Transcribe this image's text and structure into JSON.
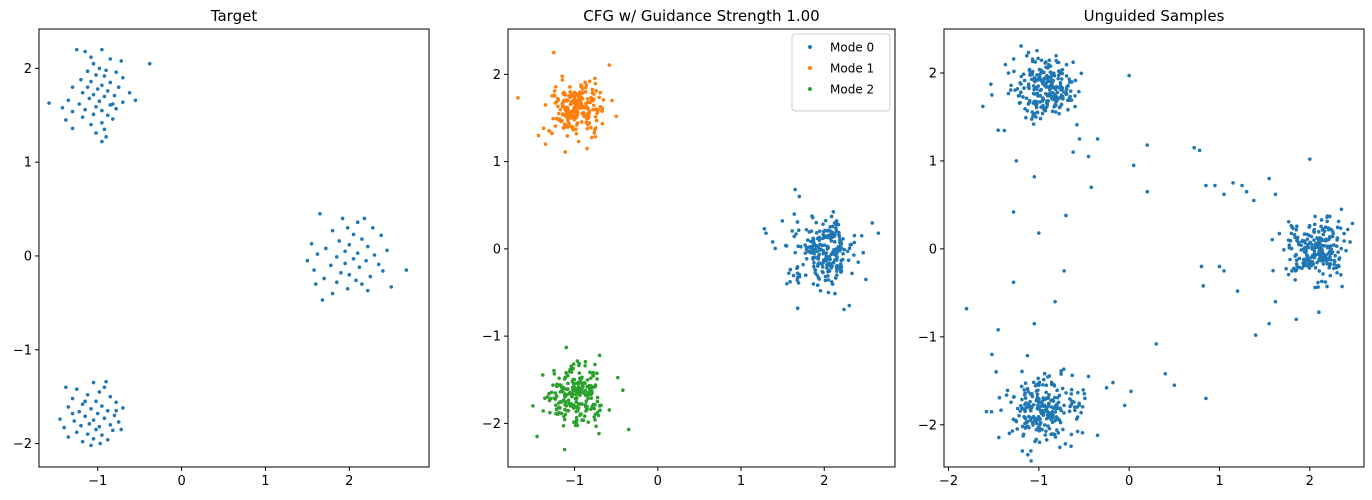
{
  "chart_data": [
    {
      "type": "scatter",
      "title": "Target",
      "xlim": [
        -1.7,
        2.95
      ],
      "ylim": [
        -2.25,
        2.42
      ],
      "xticks": [
        "−1",
        "0",
        "1",
        "2"
      ],
      "xtick_values": [
        -1,
        0,
        1,
        2
      ],
      "yticks": [
        "−2",
        "−1",
        "0",
        "1",
        "2"
      ],
      "ytick_values": [
        -2,
        -1,
        0,
        1,
        2
      ],
      "legend": false,
      "series": [
        {
          "color": "#1f77b4",
          "points": [
            [
              -1.25,
              2.2
            ],
            [
              -1.15,
              2.18
            ],
            [
              -0.95,
              2.2
            ],
            [
              -1.08,
              2.12
            ],
            [
              -0.85,
              2.1
            ],
            [
              -0.72,
              2.08
            ],
            [
              -0.38,
              2.05
            ],
            [
              -1.05,
              2.05
            ],
            [
              -0.98,
              2.0
            ],
            [
              -0.9,
              1.98
            ],
            [
              -1.12,
              1.97
            ],
            [
              -0.78,
              1.96
            ],
            [
              -1.02,
              1.93
            ],
            [
              -0.92,
              1.92
            ],
            [
              -0.7,
              1.9
            ],
            [
              -1.2,
              1.88
            ],
            [
              -1.08,
              1.86
            ],
            [
              -0.85,
              1.85
            ],
            [
              -0.95,
              1.82
            ],
            [
              -0.75,
              1.8
            ],
            [
              -1.3,
              1.8
            ],
            [
              -1.0,
              1.78
            ],
            [
              -0.88,
              1.76
            ],
            [
              -1.18,
              1.74
            ],
            [
              -0.62,
              1.74
            ],
            [
              -1.05,
              1.72
            ],
            [
              -0.8,
              1.71
            ],
            [
              -0.92,
              1.7
            ],
            [
              -1.1,
              1.68
            ],
            [
              -0.55,
              1.66
            ],
            [
              -1.35,
              1.66
            ],
            [
              -0.98,
              1.65
            ],
            [
              -0.7,
              1.64
            ],
            [
              -1.22,
              1.62
            ],
            [
              -1.58,
              1.63
            ],
            [
              -0.85,
              1.61
            ],
            [
              -1.02,
              1.59
            ],
            [
              -1.42,
              1.58
            ],
            [
              -0.78,
              1.57
            ],
            [
              -1.15,
              1.56
            ],
            [
              -0.95,
              1.55
            ],
            [
              -1.3,
              1.54
            ],
            [
              -1.05,
              1.51
            ],
            [
              -0.88,
              1.5
            ],
            [
              -1.18,
              1.48
            ],
            [
              -0.82,
              1.46
            ],
            [
              -1.38,
              1.45
            ],
            [
              -0.95,
              1.42
            ],
            [
              -1.08,
              1.4
            ],
            [
              -1.3,
              1.36
            ],
            [
              -0.92,
              1.35
            ],
            [
              -1.02,
              1.31
            ],
            [
              -0.9,
              1.27
            ],
            [
              -0.95,
              1.22
            ],
            [
              -0.82,
              1.62
            ],
            [
              -1.12,
              1.8
            ],
            [
              1.65,
              0.45
            ],
            [
              1.92,
              0.4
            ],
            [
              2.18,
              0.4
            ],
            [
              2.1,
              0.36
            ],
            [
              2.28,
              0.3
            ],
            [
              1.98,
              0.3
            ],
            [
              1.8,
              0.27
            ],
            [
              2.05,
              0.23
            ],
            [
              2.38,
              0.22
            ],
            [
              2.15,
              0.18
            ],
            [
              1.88,
              0.16
            ],
            [
              1.55,
              0.13
            ],
            [
              2.0,
              0.12
            ],
            [
              2.22,
              0.1
            ],
            [
              1.72,
              0.08
            ],
            [
              2.45,
              0.06
            ],
            [
              1.95,
              0.05
            ],
            [
              2.1,
              0.03
            ],
            [
              1.62,
              0.02
            ],
            [
              2.3,
              0.01
            ],
            [
              1.85,
              -0.01
            ],
            [
              2.05,
              -0.03
            ],
            [
              2.2,
              -0.05
            ],
            [
              1.5,
              -0.05
            ],
            [
              1.95,
              -0.08
            ],
            [
              2.35,
              -0.09
            ],
            [
              1.78,
              -0.1
            ],
            [
              2.12,
              -0.12
            ],
            [
              1.58,
              -0.15
            ],
            [
              2.68,
              -0.15
            ],
            [
              2.4,
              -0.16
            ],
            [
              1.9,
              -0.18
            ],
            [
              2.0,
              -0.2
            ],
            [
              2.25,
              -0.22
            ],
            [
              1.7,
              -0.24
            ],
            [
              2.08,
              -0.26
            ],
            [
              1.85,
              -0.28
            ],
            [
              2.15,
              -0.3
            ],
            [
              2.5,
              -0.33
            ],
            [
              1.98,
              -0.35
            ],
            [
              2.22,
              -0.37
            ],
            [
              1.8,
              -0.4
            ],
            [
              1.68,
              -0.47
            ],
            [
              1.6,
              -0.3
            ],
            [
              -0.9,
              -1.34
            ],
            [
              -1.05,
              -1.35
            ],
            [
              -1.38,
              -1.4
            ],
            [
              -0.92,
              -1.4
            ],
            [
              -1.25,
              -1.42
            ],
            [
              -0.98,
              -1.45
            ],
            [
              -1.12,
              -1.48
            ],
            [
              -0.85,
              -1.5
            ],
            [
              -1.3,
              -1.52
            ],
            [
              -1.02,
              -1.55
            ],
            [
              -0.78,
              -1.56
            ],
            [
              -1.18,
              -1.58
            ],
            [
              -0.95,
              -1.6
            ],
            [
              -1.35,
              -1.61
            ],
            [
              -0.7,
              -1.62
            ],
            [
              -1.08,
              -1.63
            ],
            [
              -0.88,
              -1.65
            ],
            [
              -1.22,
              -1.66
            ],
            [
              -1.0,
              -1.68
            ],
            [
              -0.8,
              -1.7
            ],
            [
              -1.15,
              -1.71
            ],
            [
              -0.92,
              -1.73
            ],
            [
              -1.45,
              -1.74
            ],
            [
              -1.05,
              -1.75
            ],
            [
              -1.28,
              -1.76
            ],
            [
              -0.75,
              -1.77
            ],
            [
              -1.1,
              -1.79
            ],
            [
              -0.85,
              -1.8
            ],
            [
              -1.2,
              -1.81
            ],
            [
              -0.98,
              -1.82
            ],
            [
              -1.4,
              -1.83
            ],
            [
              -1.02,
              -1.85
            ],
            [
              -0.82,
              -1.86
            ],
            [
              -1.25,
              -1.88
            ],
            [
              -1.12,
              -1.9
            ],
            [
              -0.95,
              -1.91
            ],
            [
              -1.35,
              -1.93
            ],
            [
              -1.05,
              -1.95
            ],
            [
              -0.88,
              -1.96
            ],
            [
              -1.18,
              -1.98
            ],
            [
              -0.97,
              -2.0
            ],
            [
              -1.08,
              -2.02
            ],
            [
              -0.78,
              -1.65
            ],
            [
              -1.3,
              -1.68
            ],
            [
              -0.72,
              -1.85
            ],
            [
              -1.15,
              -1.55
            ]
          ]
        }
      ]
    },
    {
      "type": "scatter",
      "title": "CFG w/ Guidance Strength 1.00",
      "xlim": [
        -1.8,
        2.85
      ],
      "ylim": [
        -2.5,
        2.52
      ],
      "xticks": [
        "−1",
        "0",
        "1",
        "2"
      ],
      "xtick_values": [
        -1,
        0,
        1,
        2
      ],
      "yticks": [
        "−2",
        "−1",
        "0",
        "1",
        "2"
      ],
      "ytick_values": [
        -2,
        -1,
        0,
        1,
        2
      ],
      "legend": true,
      "legend_position": "top-right",
      "series": [
        {
          "name": "Mode 0",
          "color": "#1f77b4",
          "center": [
            2.0,
            -0.02
          ],
          "spread": 0.19,
          "count": 230,
          "extra_points": [
            [
              1.65,
              0.68
            ],
            [
              1.7,
              0.6
            ],
            [
              1.28,
              0.23
            ],
            [
              1.3,
              0.18
            ],
            [
              1.38,
              0.08
            ],
            [
              2.65,
              0.18
            ],
            [
              2.45,
              0.15
            ],
            [
              1.68,
              -0.68
            ],
            [
              2.3,
              -0.65
            ],
            [
              2.05,
              -0.5
            ],
            [
              1.55,
              -0.4
            ],
            [
              2.5,
              -0.35
            ]
          ]
        },
        {
          "name": "Mode 1",
          "color": "#ff7f0e",
          "center": [
            -0.98,
            1.62
          ],
          "spread": 0.15,
          "count": 230,
          "extra_points": [
            [
              -1.68,
              1.73
            ],
            [
              -1.25,
              2.25
            ],
            [
              -1.35,
              1.2
            ],
            [
              -1.3,
              1.35
            ],
            [
              -0.85,
              1.15
            ],
            [
              -0.55,
              1.7
            ],
            [
              -0.5,
              1.52
            ]
          ]
        },
        {
          "name": "Mode 2",
          "color": "#2ca02c",
          "center": [
            -0.97,
            -1.68
          ],
          "spread": 0.17,
          "count": 230,
          "extra_points": [
            [
              -1.1,
              -1.13
            ],
            [
              -0.35,
              -2.07
            ],
            [
              -0.42,
              -1.62
            ],
            [
              -1.12,
              -2.3
            ],
            [
              -1.45,
              -2.15
            ],
            [
              -1.5,
              -1.8
            ],
            [
              -0.7,
              -1.22
            ]
          ]
        }
      ]
    },
    {
      "type": "scatter",
      "title": "Unguided Samples",
      "xlim": [
        -2.05,
        2.6
      ],
      "ylim": [
        -2.48,
        2.5
      ],
      "xticks": [
        "−2",
        "−1",
        "0",
        "1",
        "2"
      ],
      "xtick_values": [
        -2,
        -1,
        0,
        1,
        2
      ],
      "yticks": [
        "−2",
        "−1",
        "0",
        "1",
        "2"
      ],
      "ytick_values": [
        -2,
        -1,
        0,
        1,
        2
      ],
      "legend": false,
      "series": [
        {
          "color": "#1f77b4",
          "clusters": [
            {
              "center": [
                -0.92,
                1.82
              ],
              "spread": 0.18,
              "count": 240
            },
            {
              "center": [
                2.05,
                -0.02
              ],
              "spread": 0.16,
              "count": 240
            },
            {
              "center": [
                -0.95,
                -1.85
              ],
              "spread": 0.19,
              "count": 240
            }
          ],
          "extra_points": [
            [
              -1.62,
              1.62
            ],
            [
              -1.52,
              1.75
            ],
            [
              -1.45,
              1.35
            ],
            [
              -1.25,
              1.0
            ],
            [
              -1.05,
              0.82
            ],
            [
              -0.55,
              1.25
            ],
            [
              -0.62,
              1.1
            ],
            [
              -0.45,
              1.05
            ],
            [
              -0.35,
              1.25
            ],
            [
              0.0,
              1.97
            ],
            [
              0.05,
              0.95
            ],
            [
              0.2,
              1.18
            ],
            [
              0.2,
              0.65
            ],
            [
              -0.42,
              0.7
            ],
            [
              0.72,
              1.15
            ],
            [
              0.78,
              1.12
            ],
            [
              0.85,
              0.72
            ],
            [
              0.95,
              0.72
            ],
            [
              1.05,
              0.62
            ],
            [
              1.15,
              0.75
            ],
            [
              1.25,
              0.72
            ],
            [
              1.3,
              0.65
            ],
            [
              1.38,
              0.55
            ],
            [
              1.55,
              0.8
            ],
            [
              1.62,
              0.62
            ],
            [
              2.0,
              1.02
            ],
            [
              -1.28,
              0.42
            ],
            [
              -1.0,
              0.18
            ],
            [
              -0.7,
              0.38
            ],
            [
              0.8,
              -0.2
            ],
            [
              0.82,
              -0.42
            ],
            [
              1.0,
              -0.2
            ],
            [
              1.05,
              -0.25
            ],
            [
              1.2,
              -0.48
            ],
            [
              1.4,
              -0.98
            ],
            [
              1.55,
              -0.85
            ],
            [
              1.62,
              -0.6
            ],
            [
              1.85,
              -0.8
            ],
            [
              -1.8,
              -0.68
            ],
            [
              -1.52,
              -1.2
            ],
            [
              -1.45,
              -0.92
            ],
            [
              -1.28,
              -0.38
            ],
            [
              -1.05,
              -0.85
            ],
            [
              -0.82,
              -0.6
            ],
            [
              -0.72,
              -0.25
            ],
            [
              -0.25,
              -1.58
            ],
            [
              -0.18,
              -1.52
            ],
            [
              -0.05,
              -1.78
            ],
            [
              0.02,
              -1.62
            ],
            [
              0.3,
              -1.08
            ],
            [
              0.4,
              -1.42
            ],
            [
              0.5,
              -1.55
            ],
            [
              0.85,
              -1.7
            ],
            [
              -1.58,
              -1.85
            ],
            [
              -0.45,
              -1.45
            ],
            [
              -0.35,
              -2.12
            ],
            [
              2.1,
              -0.72
            ],
            [
              2.35,
              0.45
            ],
            [
              2.42,
              0.22
            ]
          ]
        }
      ]
    }
  ]
}
